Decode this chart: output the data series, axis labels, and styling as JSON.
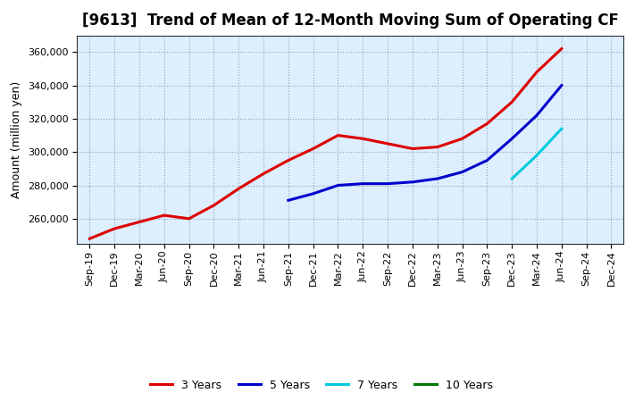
{
  "title": "[9613]  Trend of Mean of 12-Month Moving Sum of Operating CF",
  "ylabel": "Amount (million yen)",
  "background_color": "#ffffff",
  "plot_background": "#ddeeff",
  "grid_color": "#8899aa",
  "series": [
    {
      "label": "3 Years",
      "color": "#dd0000",
      "x": [
        "Sep-19",
        "Dec-19",
        "Mar-20",
        "Jun-20",
        "Sep-20",
        "Dec-20",
        "Mar-21",
        "Jun-21",
        "Sep-21",
        "Dec-21",
        "Mar-22",
        "Jun-22",
        "Sep-22",
        "Dec-22",
        "Mar-23",
        "Jun-23",
        "Sep-23",
        "Dec-23",
        "Mar-24",
        "Jun-24"
      ],
      "y": [
        248000,
        254000,
        258000,
        262000,
        260000,
        268000,
        278000,
        287000,
        295000,
        302000,
        310000,
        308000,
        305000,
        302000,
        303000,
        308000,
        317000,
        330000,
        348000,
        362000
      ]
    },
    {
      "label": "5 Years",
      "color": "#0000cc",
      "x": [
        "Sep-21",
        "Dec-21",
        "Mar-22",
        "Jun-22",
        "Sep-22",
        "Dec-22",
        "Mar-23",
        "Jun-23",
        "Sep-23",
        "Dec-23",
        "Mar-24",
        "Jun-24"
      ],
      "y": [
        271000,
        275000,
        280000,
        281000,
        281000,
        282000,
        284000,
        288000,
        295000,
        308000,
        322000,
        340000
      ]
    },
    {
      "label": "7 Years",
      "color": "#00ccdd",
      "x": [
        "Dec-23",
        "Mar-24",
        "Jun-24"
      ],
      "y": [
        284000,
        298000,
        314000
      ]
    },
    {
      "label": "10 Years",
      "color": "#007700",
      "x": [],
      "y": []
    }
  ],
  "ylim": [
    245000,
    370000
  ],
  "yticks": [
    260000,
    280000,
    300000,
    320000,
    340000,
    360000
  ],
  "xticks": [
    "Sep-19",
    "Dec-19",
    "Mar-20",
    "Jun-20",
    "Sep-20",
    "Dec-20",
    "Mar-21",
    "Jun-21",
    "Sep-21",
    "Dec-21",
    "Mar-22",
    "Jun-22",
    "Sep-22",
    "Dec-22",
    "Mar-23",
    "Jun-23",
    "Sep-23",
    "Dec-23",
    "Mar-24",
    "Jun-24",
    "Sep-24",
    "Dec-24"
  ],
  "title_fontsize": 12,
  "axis_label_fontsize": 9,
  "tick_fontsize": 8,
  "legend_fontsize": 9,
  "line_width": 2.2
}
